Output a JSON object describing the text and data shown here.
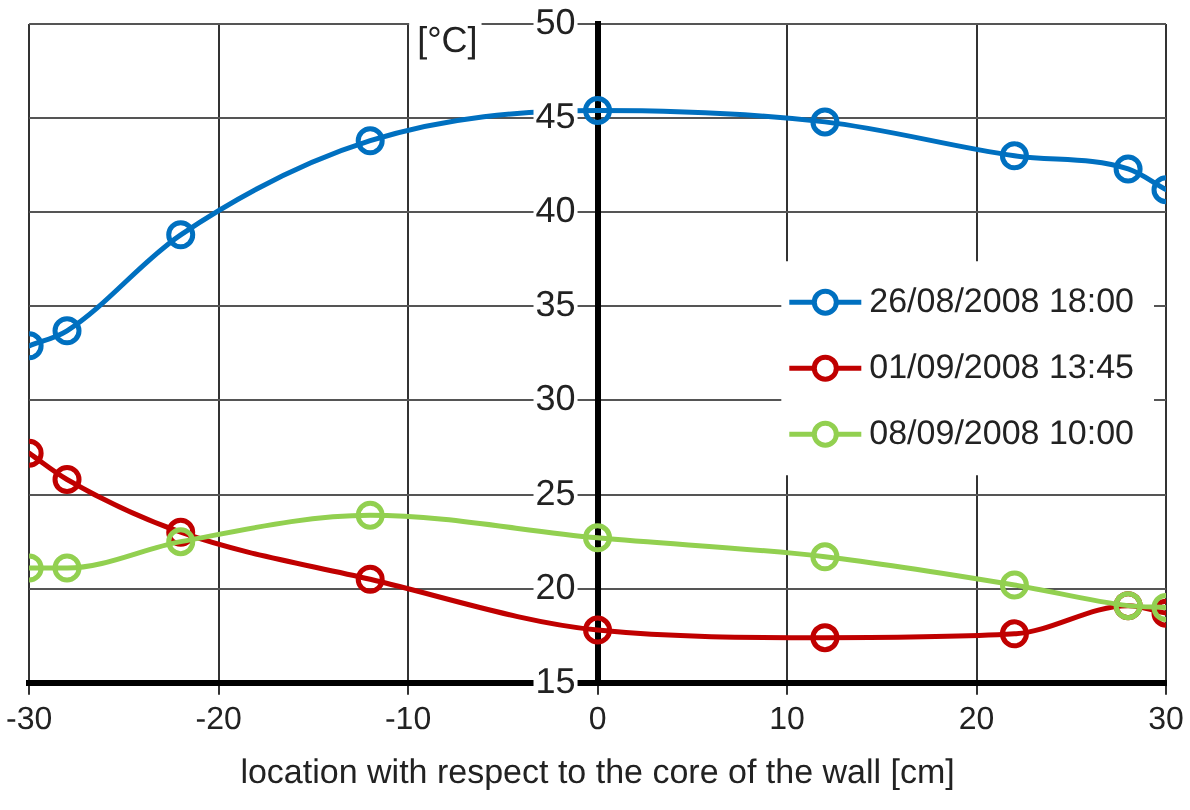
{
  "chart_data": {
    "type": "line",
    "xlabel": "location with respect to the core of the wall [cm]",
    "ylabel": "[°C]",
    "x": [
      -30,
      -28,
      -22,
      -12,
      0,
      12,
      22,
      28,
      30
    ],
    "series": [
      {
        "name": "26/08/2008 18:00",
        "color": "#0070c0",
        "values": [
          32.9,
          33.7,
          38.8,
          43.8,
          45.4,
          44.8,
          43.0,
          42.3,
          41.2
        ]
      },
      {
        "name": "01/09/2008 13:45",
        "color": "#c00000",
        "values": [
          27.2,
          25.8,
          23.0,
          20.5,
          17.8,
          17.4,
          17.6,
          19.1,
          18.7
        ]
      },
      {
        "name": "08/09/2008 10:00",
        "color": "#92d050",
        "values": [
          21.1,
          21.1,
          22.5,
          23.9,
          22.7,
          21.7,
          20.2,
          19.1,
          19.0
        ]
      }
    ],
    "xlim": [
      -30,
      30
    ],
    "xticks": [
      -30,
      -20,
      -10,
      0,
      10,
      20,
      30
    ],
    "ylim": [
      15,
      50
    ],
    "yticks": [
      15,
      20,
      25,
      30,
      35,
      40,
      45,
      50
    ],
    "grid": true,
    "legend": "right",
    "marker": "circle",
    "line_style": "solid"
  }
}
